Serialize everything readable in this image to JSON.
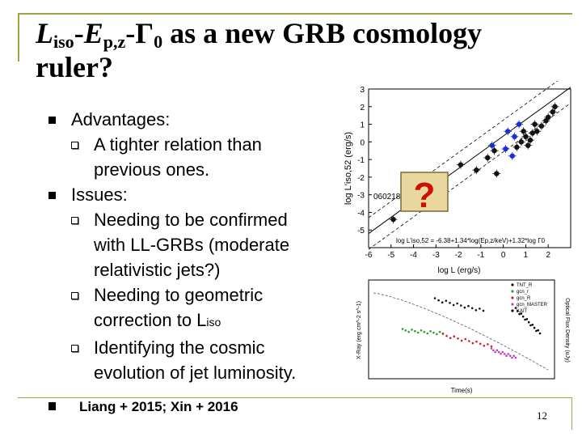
{
  "title": {
    "L": "L",
    "L_sub": "iso",
    "dash1": "-",
    "E": "E",
    "E_sub": "p,z",
    "dash2": "-",
    "Gamma": "Γ",
    "Gamma_sub": "0",
    "rest_line1": " as a new GRB cosmology",
    "line2": "ruler?"
  },
  "bullets": {
    "advantages": "Advantages:",
    "adv_1": "A tighter relation than previous ones.",
    "issues": "Issues:",
    "issue_1": "Needing to be confirmed with LL-GRBs (moderate relativistic jets?)",
    "issue_2_prefix": "Needing to geometric correction to L",
    "issue_2_sub": "iso",
    "issue_3": "Identifying the cosmic evolution of jet luminosity."
  },
  "reference": "Liang + 2015; Xin + 2016",
  "page_number": "12",
  "colors": {
    "frame": "#a3a34a",
    "question_box_fill": "#e8d8a0",
    "question_mark": "#cc1100"
  },
  "chart_data": [
    {
      "type": "scatter",
      "title": "",
      "xlabel": "log L (erg/s)",
      "ylabel": "log L'iso,52 (erg/s)",
      "xlim": [
        -6,
        3
      ],
      "ylim": [
        -6,
        3
      ],
      "x_ticks": [
        "-6",
        "-5",
        "-4",
        "-3",
        "-2",
        "-1",
        "0",
        "1",
        "2"
      ],
      "y_ticks": [
        "3",
        "2",
        "1",
        "0",
        "-1",
        "-2",
        "-3",
        "-4",
        "-5"
      ],
      "annotation_label": "060218",
      "fit_formula": "log L'iso,52 = -6.38+1.34*log(Ep,z/keV)+1.32*log Γ0",
      "highlight_marker": "?",
      "fit_line": [
        [
          -6,
          -5.2
        ],
        [
          3,
          3.1
        ]
      ],
      "series": [
        {
          "color": "#111111",
          "points": [
            [
              -4.9,
              -4.4
            ],
            [
              -1.9,
              -1.3
            ],
            [
              -0.7,
              -0.9
            ],
            [
              -0.4,
              -0.5
            ],
            [
              -0.3,
              -1.8
            ],
            [
              -1.2,
              -1.6
            ],
            [
              0.8,
              0.0
            ],
            [
              1.0,
              0.3
            ],
            [
              1.2,
              0.1
            ],
            [
              1.3,
              0.5
            ],
            [
              1.5,
              0.6
            ],
            [
              0.6,
              -0.3
            ],
            [
              1.7,
              0.9
            ],
            [
              1.9,
              1.2
            ],
            [
              0.9,
              0.6
            ],
            [
              1.1,
              -0.2
            ],
            [
              2.0,
              1.4
            ],
            [
              2.2,
              1.7
            ],
            [
              1.4,
              1.0
            ],
            [
              2.3,
              2.0
            ]
          ]
        },
        {
          "color": "#1a2fd0",
          "points": [
            [
              -0.5,
              -0.2
            ],
            [
              0.1,
              -0.4
            ],
            [
              0.5,
              0.3
            ],
            [
              0.4,
              -0.8
            ],
            [
              0.7,
              1.0
            ],
            [
              0.2,
              0.6
            ]
          ]
        }
      ]
    },
    {
      "type": "line",
      "title": "",
      "xlabel": "Time(s)",
      "ylabel": "X-Ray (erg cm^-2 s^-1)",
      "y2label": "Optical Flux Density (uJy)",
      "legend": [
        "TNT_R",
        "gcn_r",
        "gcn_R",
        "gcn_MASTER",
        "KAIT"
      ],
      "legend_position": "top-right",
      "series": [
        {
          "name": "TNT_R",
          "color": "#111111",
          "style": "points"
        },
        {
          "name": "gcn_r",
          "color": "#2e9e2e",
          "style": "points"
        },
        {
          "name": "gcn_R",
          "color": "#cc2222",
          "style": "points"
        },
        {
          "name": "gcn_MASTER",
          "color": "#c03cc0",
          "style": "points"
        },
        {
          "name": "KAIT",
          "color": "#000000",
          "style": "points"
        }
      ]
    }
  ]
}
